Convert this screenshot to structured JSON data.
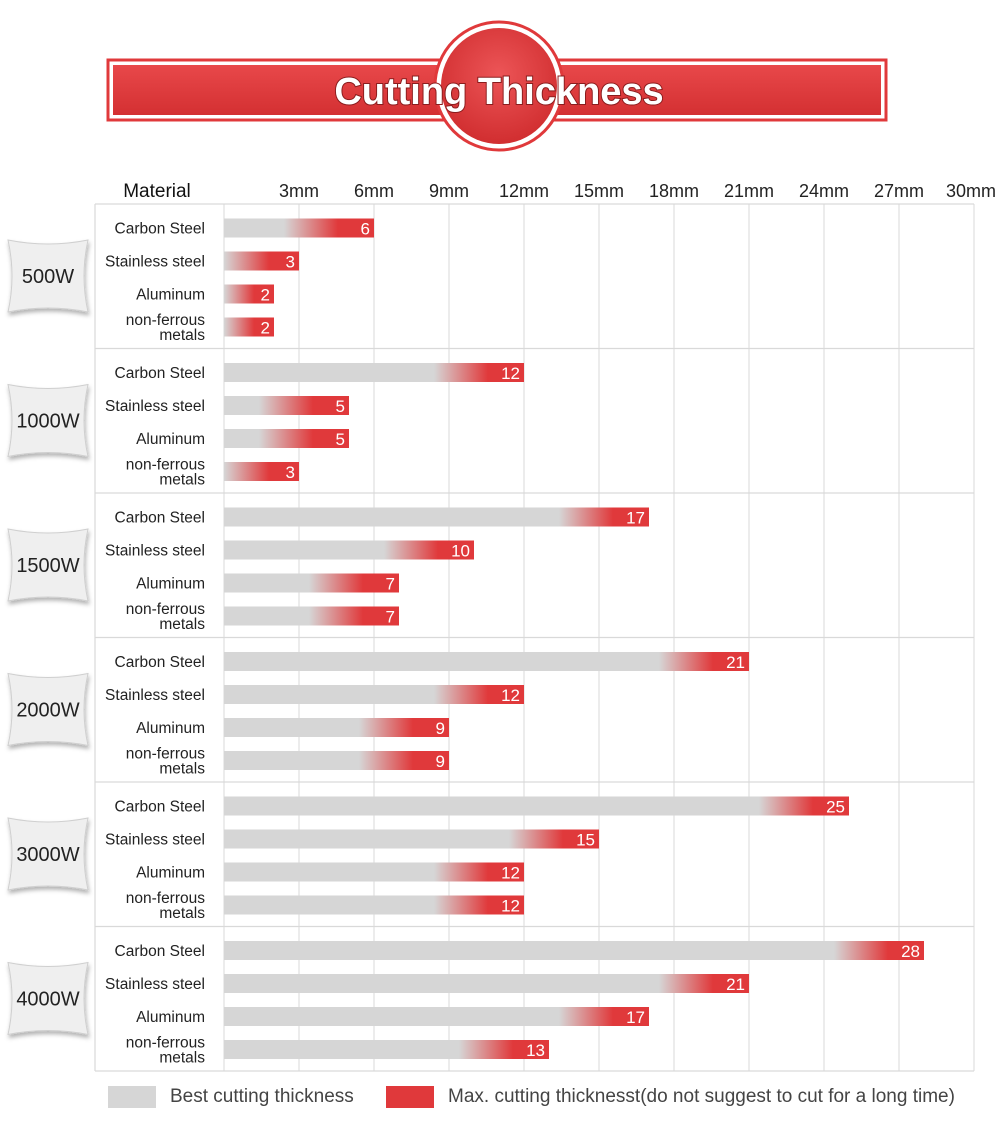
{
  "title": "Cutting Thickness",
  "colors": {
    "banner_red": "#e0393b",
    "best": "#d6d6d6",
    "max": "#e0393b",
    "grid": "#d9d9d9",
    "badge_bg": "#efefef"
  },
  "chart_data": {
    "type": "bar",
    "orientation": "horizontal",
    "stacked_gradient": true,
    "column_header": "Material",
    "xlim": [
      0,
      30
    ],
    "x_ticks": [
      "3mm",
      "6mm",
      "9mm",
      "12mm",
      "15mm",
      "18mm",
      "21mm",
      "24mm",
      "27mm",
      "30mm"
    ],
    "x_tick_values": [
      3,
      6,
      9,
      12,
      15,
      18,
      21,
      24,
      27,
      30
    ],
    "grid": true,
    "groups": [
      {
        "power": "500W",
        "rows": [
          {
            "material": [
              "Carbon Steel"
            ],
            "value": 6
          },
          {
            "material": [
              "Stainless steel"
            ],
            "value": 3
          },
          {
            "material": [
              "Aluminum"
            ],
            "value": 2
          },
          {
            "material": [
              "non-ferrous",
              "metals"
            ],
            "value": 2
          }
        ]
      },
      {
        "power": "1000W",
        "rows": [
          {
            "material": [
              "Carbon Steel"
            ],
            "value": 12
          },
          {
            "material": [
              "Stainless steel"
            ],
            "value": 5
          },
          {
            "material": [
              "Aluminum"
            ],
            "value": 5
          },
          {
            "material": [
              "non-ferrous",
              "metals"
            ],
            "value": 3
          }
        ]
      },
      {
        "power": "1500W",
        "rows": [
          {
            "material": [
              "Carbon Steel"
            ],
            "value": 17
          },
          {
            "material": [
              "Stainless steel"
            ],
            "value": 10
          },
          {
            "material": [
              "Aluminum"
            ],
            "value": 7
          },
          {
            "material": [
              "non-ferrous",
              "metals"
            ],
            "value": 7
          }
        ]
      },
      {
        "power": "2000W",
        "rows": [
          {
            "material": [
              "Carbon Steel"
            ],
            "value": 21
          },
          {
            "material": [
              "Stainless steel"
            ],
            "value": 12
          },
          {
            "material": [
              "Aluminum"
            ],
            "value": 9
          },
          {
            "material": [
              "non-ferrous",
              "metals"
            ],
            "value": 9
          }
        ]
      },
      {
        "power": "3000W",
        "rows": [
          {
            "material": [
              "Carbon Steel"
            ],
            "value": 25
          },
          {
            "material": [
              "Stainless steel"
            ],
            "value": 15
          },
          {
            "material": [
              "Aluminum"
            ],
            "value": 12
          },
          {
            "material": [
              "non-ferrous",
              "metals"
            ],
            "value": 12
          }
        ]
      },
      {
        "power": "4000W",
        "rows": [
          {
            "material": [
              "Carbon Steel"
            ],
            "value": 28
          },
          {
            "material": [
              "Stainless steel"
            ],
            "value": 21
          },
          {
            "material": [
              "Aluminum"
            ],
            "value": 17
          },
          {
            "material": [
              "non-ferrous",
              "metals"
            ],
            "value": 13
          }
        ]
      }
    ],
    "legend": [
      {
        "label": "Best cutting thickness",
        "color": "#d6d6d6"
      },
      {
        "label": "Max. cutting thicknesst(do not suggest to cut for a long time)",
        "color": "#e0393b"
      }
    ]
  }
}
